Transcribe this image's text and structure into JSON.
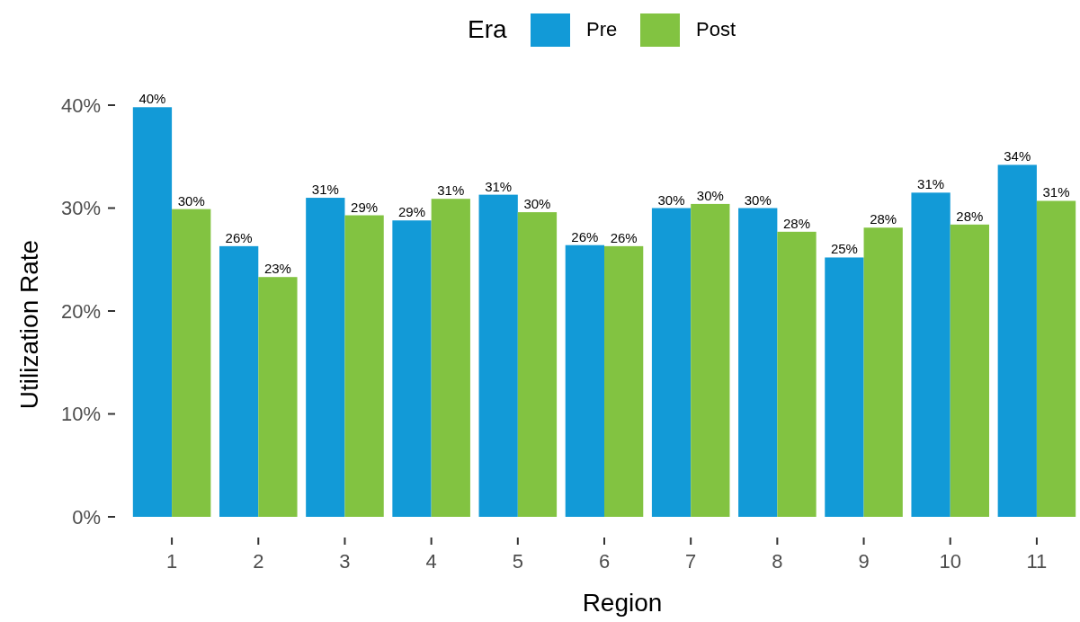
{
  "chart_data": {
    "type": "bar",
    "xlabel": "Region",
    "ylabel": "Utilization Rate",
    "legend_title": "Era",
    "legend": "top",
    "categories": [
      "1",
      "2",
      "3",
      "4",
      "5",
      "6",
      "7",
      "8",
      "9",
      "10",
      "11"
    ],
    "series": [
      {
        "name": "Pre",
        "color": "#129ad7",
        "values": [
          39.8,
          26.3,
          31.0,
          28.8,
          31.3,
          26.4,
          30.0,
          30.0,
          25.2,
          31.5,
          34.2
        ],
        "value_labels": [
          "40%",
          "26%",
          "31%",
          "29%",
          "31%",
          "26%",
          "30%",
          "30%",
          "25%",
          "31%",
          "34%"
        ]
      },
      {
        "name": "Post",
        "color": "#82c341",
        "values": [
          29.9,
          23.3,
          29.3,
          30.9,
          29.6,
          26.3,
          30.4,
          27.7,
          28.1,
          28.4,
          30.7
        ],
        "value_labels": [
          "30%",
          "23%",
          "29%",
          "31%",
          "30%",
          "26%",
          "30%",
          "28%",
          "28%",
          "28%",
          "31%"
        ]
      }
    ],
    "ylim": [
      0,
      40
    ],
    "yticks": [
      {
        "value": 0,
        "label": "0%"
      },
      {
        "value": 10,
        "label": "10%"
      },
      {
        "value": 20,
        "label": "20%"
      },
      {
        "value": 30,
        "label": "30%"
      },
      {
        "value": 40,
        "label": "40%"
      }
    ],
    "grid": false
  }
}
